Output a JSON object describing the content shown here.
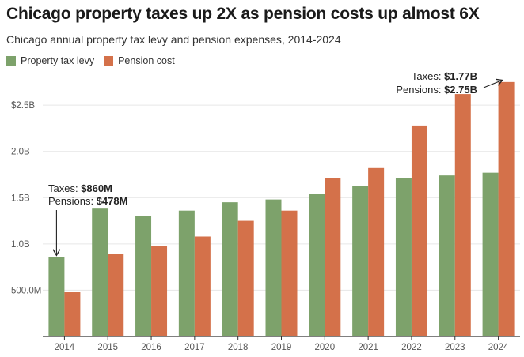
{
  "title": "Chicago property taxes up 2X as pension costs up almost 6X",
  "subtitle": "Chicago annual property tax levy and pension expenses, 2014-2024",
  "colors": {
    "taxes": "#7da26b",
    "pension": "#d4714a",
    "grid": "#e6e6e6",
    "axis": "#333333"
  },
  "chart_data": {
    "type": "bar",
    "categories": [
      "2014",
      "2015",
      "2016",
      "2017",
      "2018",
      "2019",
      "2020",
      "2021",
      "2022",
      "2023",
      "2024"
    ],
    "series": [
      {
        "name": "Property tax levy",
        "color": "#7da26b",
        "values": [
          0.86,
          1.39,
          1.3,
          1.36,
          1.45,
          1.48,
          1.54,
          1.63,
          1.71,
          1.74,
          1.77
        ]
      },
      {
        "name": "Pension cost",
        "color": "#d4714a",
        "values": [
          0.478,
          0.89,
          0.98,
          1.08,
          1.25,
          1.36,
          1.71,
          1.82,
          2.28,
          2.62,
          2.75
        ]
      }
    ],
    "ylim": [
      0,
      2.8
    ],
    "yticks": [
      {
        "value": 0.5,
        "label": "500.0M"
      },
      {
        "value": 1.0,
        "label": "1.0B"
      },
      {
        "value": 1.5,
        "label": "1.5B"
      },
      {
        "value": 2.0,
        "label": "2.0B"
      },
      {
        "value": 2.5,
        "label": "$2.5B"
      }
    ],
    "grid": true,
    "legend_position": "top-left",
    "annotations": [
      {
        "year": "2014",
        "series": "Property tax levy",
        "line1_prefix": "Taxes: ",
        "line1_value": "$860M",
        "line2_prefix": "Pensions: ",
        "line2_value": "$478M"
      },
      {
        "year": "2024",
        "series": "Pension cost",
        "line1_prefix": "Taxes: ",
        "line1_value": "$1.77B",
        "line2_prefix": "Pensions: ",
        "line2_value": "$2.75B"
      }
    ]
  }
}
